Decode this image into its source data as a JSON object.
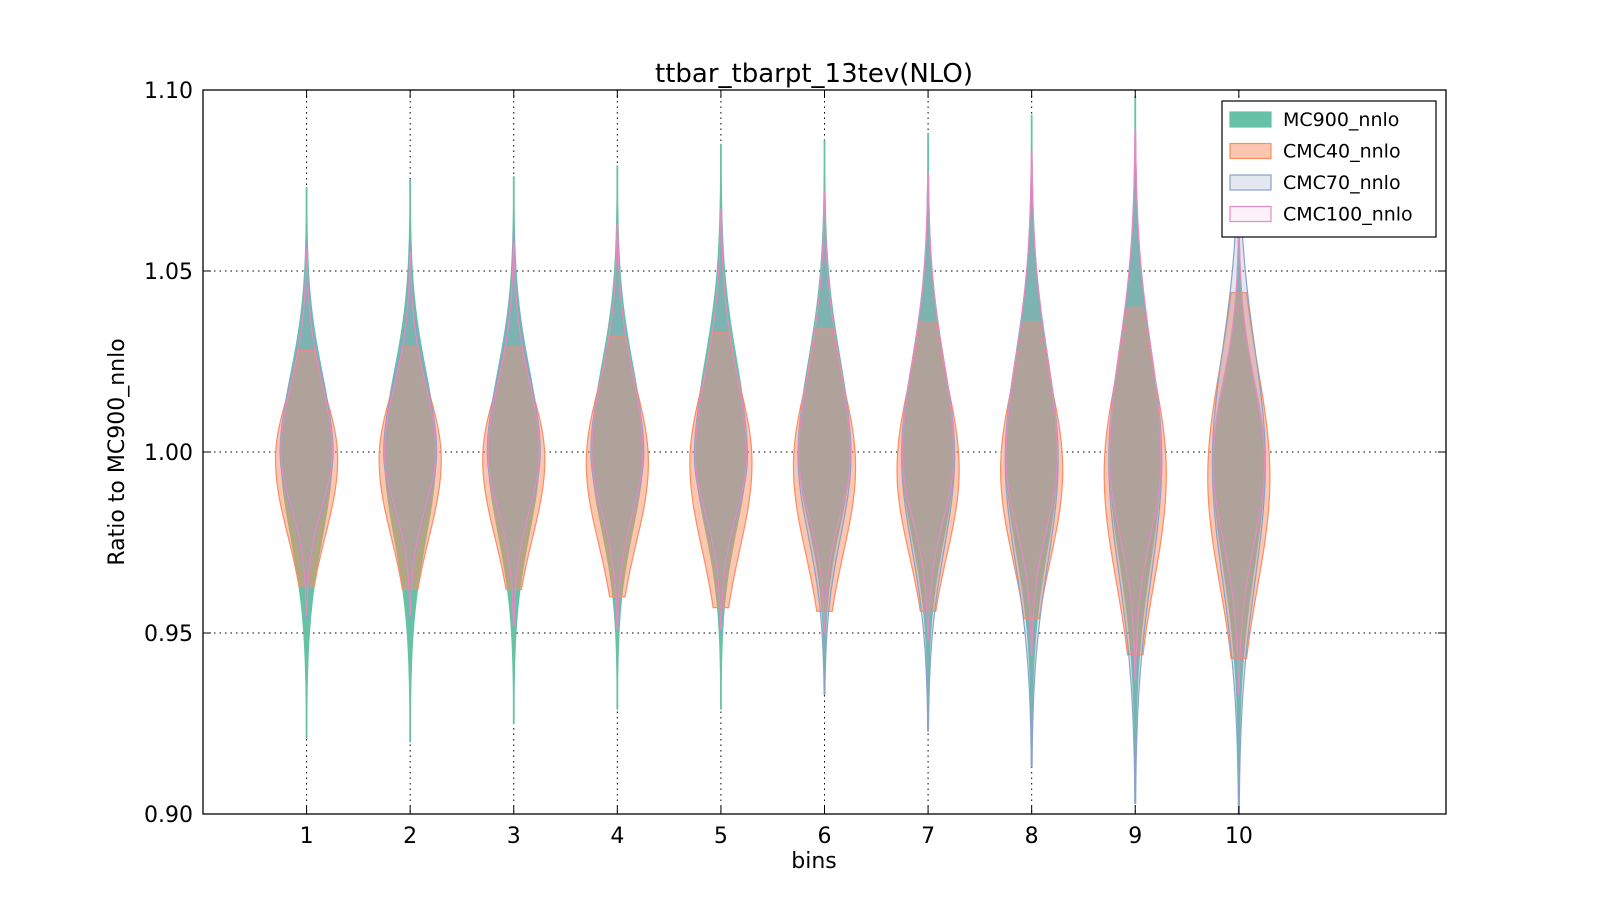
{
  "chart_data": {
    "type": "violin",
    "title": "ttbar_tbarpt_13tev(NLO)",
    "xlabel": "bins",
    "ylabel": "Ratio to MC900_nnlo",
    "ylim": [
      0.9,
      1.1
    ],
    "y_ticks": [
      "0.90",
      "0.95",
      "1.00",
      "1.05",
      "1.10"
    ],
    "y_tick_values": [
      0.9,
      0.95,
      1.0,
      1.05,
      1.1
    ],
    "categories": [
      "1",
      "2",
      "3",
      "4",
      "5",
      "6",
      "7",
      "8",
      "9",
      "10"
    ],
    "grid": true,
    "legend_position": "top-right",
    "series": [
      {
        "name": "MC900_nnlo",
        "color": "#66c2a5",
        "ymin": [
          0.921,
          0.92,
          0.925,
          0.929,
          0.929,
          0.933,
          0.923,
          0.913,
          0.903,
          0.9
        ],
        "ymax": [
          1.073,
          1.075,
          1.076,
          1.079,
          1.085,
          1.086,
          1.088,
          1.093,
          1.098,
          1.07
        ],
        "center": [
          1.0,
          1.0,
          1.0,
          1.0,
          1.0,
          1.0,
          0.999,
          0.999,
          0.999,
          0.998
        ]
      },
      {
        "name": "CMC40_nnlo",
        "color": "#fc8d62",
        "ymin": [
          0.963,
          0.962,
          0.962,
          0.96,
          0.957,
          0.956,
          0.956,
          0.954,
          0.944,
          0.943
        ],
        "ymax": [
          1.028,
          1.029,
          1.029,
          1.032,
          1.033,
          1.034,
          1.036,
          1.036,
          1.04,
          1.044
        ],
        "center": [
          0.998,
          0.998,
          0.998,
          0.997,
          0.997,
          0.996,
          0.995,
          0.995,
          0.994,
          0.993
        ]
      },
      {
        "name": "CMC70_nnlo",
        "color": "#8da0cb",
        "ymin": [
          0.954,
          0.954,
          0.952,
          0.951,
          0.95,
          0.933,
          0.923,
          0.913,
          0.903,
          0.9
        ],
        "ymax": [
          1.058,
          1.058,
          1.061,
          1.062,
          1.066,
          1.071,
          1.075,
          1.08,
          1.086,
          1.09
        ],
        "center": [
          1.0,
          1.0,
          1.0,
          1.0,
          0.999,
          0.999,
          0.999,
          0.998,
          0.998,
          0.997
        ]
      },
      {
        "name": "CMC100_nnlo",
        "color": "#e78ac3",
        "ymin": [
          0.955,
          0.955,
          0.952,
          0.951,
          0.951,
          0.95,
          0.948,
          0.944,
          0.937,
          0.933
        ],
        "ymax": [
          1.056,
          1.055,
          1.058,
          1.063,
          1.067,
          1.072,
          1.077,
          1.083,
          1.089,
          1.063
        ],
        "center": [
          1.0,
          1.0,
          1.0,
          1.0,
          0.999,
          0.999,
          0.999,
          0.998,
          0.998,
          0.997
        ]
      }
    ]
  }
}
